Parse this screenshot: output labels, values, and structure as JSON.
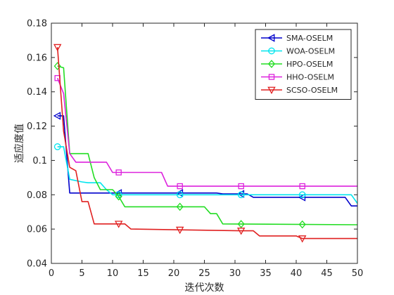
{
  "chart_data": {
    "type": "line",
    "xlabel": "迭代次数",
    "ylabel": "适应度值",
    "xlim": [
      0,
      50
    ],
    "ylim": [
      0.04,
      0.18
    ],
    "xticks": [
      0,
      5,
      10,
      15,
      20,
      25,
      30,
      35,
      40,
      45,
      50
    ],
    "yticks": [
      0.04,
      0.06,
      0.08,
      0.1,
      0.12,
      0.14,
      0.16,
      0.18
    ],
    "grid": false,
    "legend_position": "top-right",
    "series": [
      {
        "name": "SMA-OSELM",
        "color": "#0000cc",
        "marker": "triangle-left",
        "marker_x": [
          1,
          11,
          21,
          31,
          41
        ],
        "points": [
          [
            1,
            0.126
          ],
          [
            2,
            0.126
          ],
          [
            3,
            0.081
          ],
          [
            9,
            0.081
          ],
          [
            11,
            0.081
          ],
          [
            20,
            0.081
          ],
          [
            27,
            0.081
          ],
          [
            28,
            0.0805
          ],
          [
            32,
            0.0805
          ],
          [
            33,
            0.0785
          ],
          [
            38,
            0.0785
          ],
          [
            41,
            0.0785
          ],
          [
            48,
            0.0785
          ],
          [
            49,
            0.0735
          ],
          [
            50,
            0.0735
          ]
        ]
      },
      {
        "name": "WOA-OSELM",
        "color": "#00e5ee",
        "marker": "circle",
        "marker_x": [
          1,
          11,
          21,
          31,
          41
        ],
        "points": [
          [
            1,
            0.108
          ],
          [
            2,
            0.108
          ],
          [
            3,
            0.089
          ],
          [
            5,
            0.0875
          ],
          [
            6,
            0.087
          ],
          [
            8,
            0.087
          ],
          [
            9,
            0.083
          ],
          [
            10,
            0.08
          ],
          [
            41,
            0.08
          ],
          [
            49,
            0.08
          ],
          [
            50,
            0.075
          ]
        ]
      },
      {
        "name": "HPO-OSELM",
        "color": "#22dd22",
        "marker": "diamond",
        "marker_x": [
          1,
          11,
          21,
          31,
          41
        ],
        "points": [
          [
            1,
            0.155
          ],
          [
            2,
            0.154
          ],
          [
            3,
            0.104
          ],
          [
            6,
            0.104
          ],
          [
            7,
            0.09
          ],
          [
            8,
            0.083
          ],
          [
            10,
            0.083
          ],
          [
            11,
            0.079
          ],
          [
            12,
            0.073
          ],
          [
            25,
            0.073
          ],
          [
            26,
            0.069
          ],
          [
            27,
            0.069
          ],
          [
            28,
            0.063
          ],
          [
            50,
            0.0625
          ]
        ]
      },
      {
        "name": "HHO-OSELM",
        "color": "#dd22dd",
        "marker": "square",
        "marker_x": [
          1,
          11,
          21,
          31,
          41
        ],
        "points": [
          [
            1,
            0.148
          ],
          [
            2,
            0.139
          ],
          [
            3,
            0.104
          ],
          [
            4,
            0.099
          ],
          [
            9,
            0.099
          ],
          [
            10,
            0.093
          ],
          [
            18,
            0.093
          ],
          [
            19,
            0.085
          ],
          [
            50,
            0.085
          ]
        ]
      },
      {
        "name": "SCSO-OSELM",
        "color": "#e02020",
        "marker": "triangle-down",
        "marker_x": [
          1,
          11,
          21,
          31,
          41
        ],
        "points": [
          [
            1,
            0.166
          ],
          [
            2,
            0.117
          ],
          [
            3,
            0.096
          ],
          [
            4,
            0.094
          ],
          [
            5,
            0.076
          ],
          [
            6,
            0.076
          ],
          [
            7,
            0.063
          ],
          [
            12,
            0.063
          ],
          [
            13,
            0.06
          ],
          [
            31,
            0.059
          ],
          [
            33,
            0.059
          ],
          [
            34,
            0.056
          ],
          [
            40,
            0.056
          ],
          [
            41,
            0.0545
          ],
          [
            50,
            0.0545
          ]
        ]
      }
    ]
  }
}
